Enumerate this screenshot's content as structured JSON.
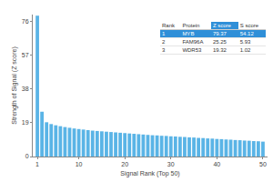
{
  "chart_data": {
    "type": "bar",
    "x_label": "Signal Rank (Top 50)",
    "y_label": "Strength of Signal (Z score)",
    "x": [
      1,
      2,
      3,
      4,
      5,
      6,
      7,
      8,
      9,
      10,
      11,
      12,
      13,
      14,
      15,
      16,
      17,
      18,
      19,
      20,
      21,
      22,
      23,
      24,
      25,
      26,
      27,
      28,
      29,
      30,
      31,
      32,
      33,
      34,
      35,
      36,
      37,
      38,
      39,
      40,
      41,
      42,
      43,
      44,
      45,
      46,
      47,
      48,
      49,
      50
    ],
    "values": [
      79.37,
      25.25,
      19.32,
      18.3,
      17.6,
      17.1,
      16.6,
      16.2,
      15.8,
      15.5,
      15.2,
      14.9,
      14.6,
      14.4,
      14.2,
      14.0,
      13.8,
      13.6,
      13.4,
      13.2,
      13.0,
      12.8,
      12.6,
      12.4,
      12.2,
      12.0,
      11.9,
      11.7,
      11.6,
      11.4,
      11.3,
      11.1,
      11.0,
      10.8,
      10.7,
      10.5,
      10.4,
      10.2,
      10.1,
      9.9,
      9.8,
      9.6,
      9.5,
      9.3,
      9.2,
      9.0,
      8.9,
      8.7,
      8.6,
      8.4
    ],
    "color": "#5ab4e6",
    "xlim": [
      0,
      51
    ],
    "xticks": [
      1,
      10,
      20,
      30,
      40,
      50
    ],
    "ylim": [
      0,
      80
    ],
    "yticks": [
      0,
      19,
      38,
      57,
      76
    ],
    "grid": false
  },
  "table": {
    "header": [
      "Rank",
      "Protein",
      "Z score",
      "S score"
    ],
    "highlight_column": 2,
    "highlight_row": 0,
    "rows": [
      [
        "1",
        "MYB",
        "79.37",
        "54.12"
      ],
      [
        "2",
        "FAM96A",
        "25.25",
        "5.93"
      ],
      [
        "3",
        "WDR53",
        "19.32",
        "1.02"
      ]
    ]
  }
}
